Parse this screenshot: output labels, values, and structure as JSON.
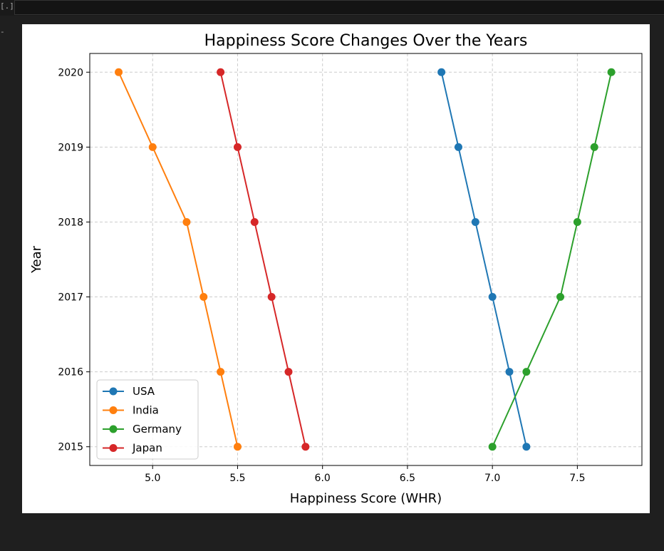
{
  "window": {
    "prompt_glyph": "[.]",
    "gutter_glyph": "-"
  },
  "chart_data": {
    "type": "line",
    "title": "Happiness Score Changes Over the Years",
    "xlabel": "Happiness Score (WHR)",
    "ylabel": "Year",
    "xlim": [
      4.63,
      7.88
    ],
    "ylim": [
      2014.75,
      2020.25
    ],
    "xticks": [
      5.0,
      5.5,
      6.0,
      6.5,
      7.0,
      7.5
    ],
    "xtick_labels": [
      "5.0",
      "5.5",
      "6.0",
      "6.5",
      "7.0",
      "7.5"
    ],
    "yticks": [
      2015,
      2016,
      2017,
      2018,
      2019,
      2020
    ],
    "ytick_labels": [
      "2015",
      "2016",
      "2017",
      "2018",
      "2019",
      "2020"
    ],
    "grid": true,
    "legend_position": "lower-left",
    "series": [
      {
        "name": "USA",
        "color": "#1f77b4",
        "x": [
          7.2,
          7.1,
          7.0,
          6.9,
          6.8,
          6.7
        ],
        "y": [
          2015,
          2016,
          2017,
          2018,
          2019,
          2020
        ]
      },
      {
        "name": "India",
        "color": "#ff7f0e",
        "x": [
          5.5,
          5.4,
          5.3,
          5.2,
          5.0,
          4.8
        ],
        "y": [
          2015,
          2016,
          2017,
          2018,
          2019,
          2020
        ]
      },
      {
        "name": "Germany",
        "color": "#2ca02c",
        "x": [
          7.0,
          7.2,
          7.4,
          7.5,
          7.6,
          7.7
        ],
        "y": [
          2015,
          2016,
          2017,
          2018,
          2019,
          2020
        ]
      },
      {
        "name": "Japan",
        "color": "#d62728",
        "x": [
          5.9,
          5.8,
          5.7,
          5.6,
          5.5,
          5.4
        ],
        "y": [
          2015,
          2016,
          2017,
          2018,
          2019,
          2020
        ]
      }
    ]
  }
}
